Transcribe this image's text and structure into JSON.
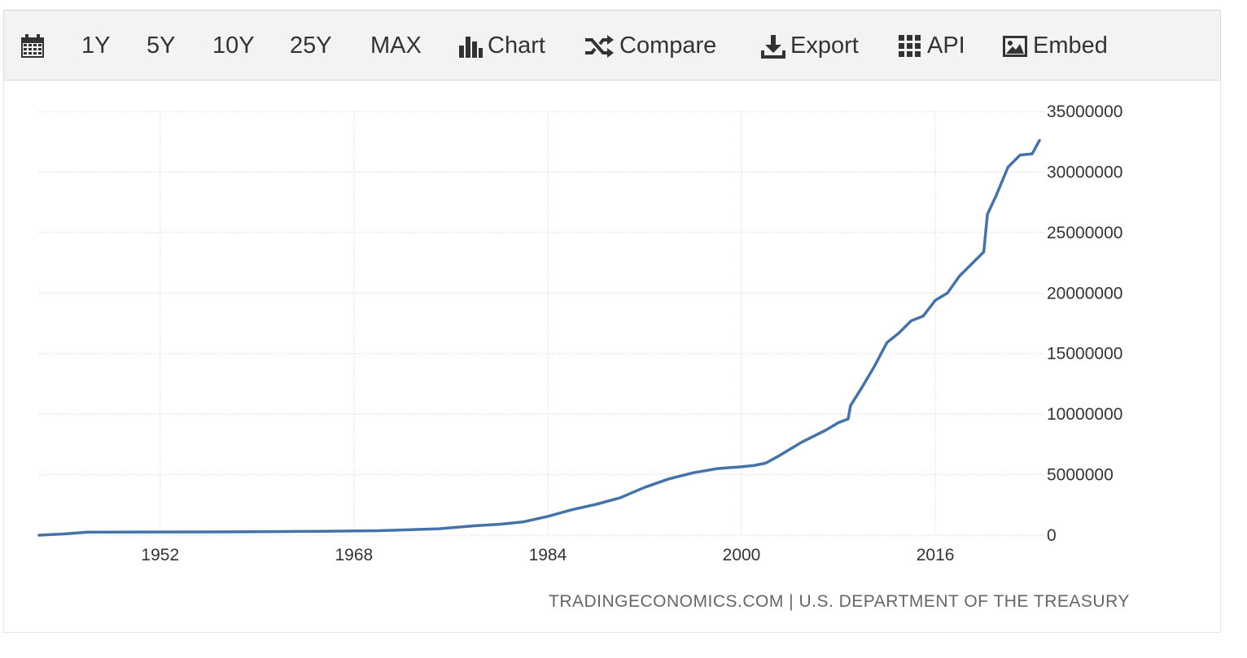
{
  "toolbar": {
    "items": [
      {
        "label": "",
        "icon": "calendar-icon"
      },
      {
        "label": "1Y"
      },
      {
        "label": "5Y"
      },
      {
        "label": "10Y"
      },
      {
        "label": "25Y"
      },
      {
        "label": "MAX"
      },
      {
        "label": "Chart",
        "icon": "bar-chart-icon"
      },
      {
        "label": "Compare",
        "icon": "shuffle-icon"
      },
      {
        "label": "Export",
        "icon": "download-icon"
      },
      {
        "label": "API",
        "icon": "grid-icon"
      },
      {
        "label": "Embed",
        "icon": "image-icon"
      }
    ]
  },
  "source": "TRADINGECONOMICS.COM | U.S. DEPARTMENT OF THE TREASURY",
  "chart_data": {
    "type": "line",
    "title": "",
    "xlabel": "",
    "ylabel": "",
    "line_color": "#4572a7",
    "grid": true,
    "xlim": [
      1942,
      2025
    ],
    "ylim": [
      0,
      35000000
    ],
    "x_ticks": [
      "1952",
      "1968",
      "1984",
      "2000",
      "2016"
    ],
    "y_ticks": [
      "0",
      "5000000",
      "10000000",
      "15000000",
      "20000000",
      "25000000",
      "30000000",
      "35000000"
    ],
    "series": [
      {
        "name": "",
        "x": [
          1942,
          1944,
          1946,
          1950,
          1955,
          1960,
          1965,
          1970,
          1975,
          1978,
          1980,
          1982,
          1984,
          1986,
          1988,
          1990,
          1992,
          1994,
          1996,
          1998,
          2000,
          2001,
          2002,
          2003,
          2005,
          2007,
          2008,
          2008.8,
          2009,
          2010,
          2011,
          2012,
          2013,
          2014,
          2015,
          2016,
          2017,
          2018,
          2019,
          2020,
          2020.3,
          2021,
          2022,
          2023,
          2024,
          2024.6
        ],
        "y": [
          0,
          100000,
          250000,
          260000,
          270000,
          290000,
          320000,
          370000,
          530000,
          780000,
          900000,
          1100000,
          1550000,
          2100000,
          2550000,
          3100000,
          3950000,
          4650000,
          5150000,
          5500000,
          5650000,
          5750000,
          5950000,
          6500000,
          7700000,
          8700000,
          9300000,
          9600000,
          10700000,
          12300000,
          14000000,
          15900000,
          16700000,
          17700000,
          18100000,
          19400000,
          20000000,
          21400000,
          22400000,
          23400000,
          26500000,
          28000000,
          30400000,
          31400000,
          31500000,
          32600000
        ]
      }
    ]
  }
}
